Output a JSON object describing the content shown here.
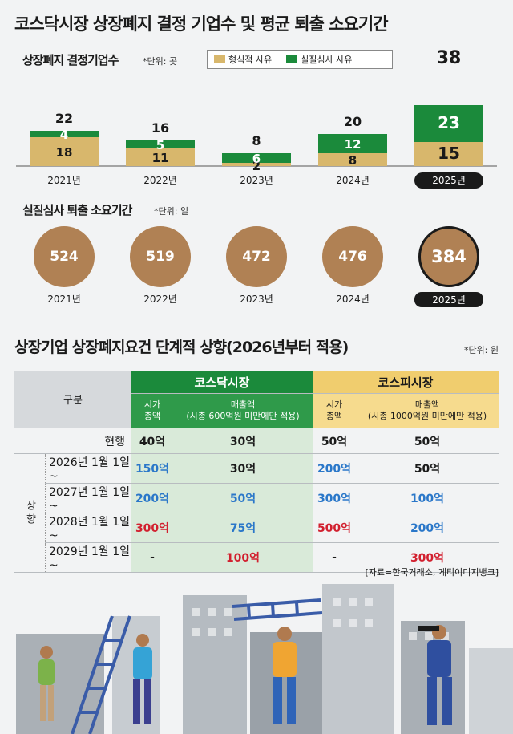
{
  "title": "코스닥시장 상장폐지 결정 기업수 및 평균 퇴출 소요기간",
  "section1": {
    "subtitle": "상장폐지 결정기업수",
    "unit": "*단위: 곳"
  },
  "section2": {
    "subtitle": "실질심사 퇴출 소요기간",
    "unit": "*단위: 일"
  },
  "section3": {
    "title": "상장기업 상장폐지요건 단계적 상향(2026년부터 적용)",
    "unit": "*단위: 원"
  },
  "colors": {
    "formal": "#d8b76c",
    "substantive": "#1b8a3b",
    "circle": "#b08154",
    "kosdaq": "#1b8a3b",
    "kospi": "#f0cd6e"
  },
  "chart_data": [
    {
      "type": "bar",
      "stacked": true,
      "categories": [
        "2021년",
        "2022년",
        "2023년",
        "2024년",
        "2025년"
      ],
      "series": [
        {
          "name": "형식적 사유",
          "values": [
            18,
            11,
            2,
            8,
            15
          ]
        },
        {
          "name": "실질심사 사유",
          "values": [
            4,
            5,
            6,
            12,
            23
          ]
        }
      ],
      "totals": [
        22,
        16,
        8,
        20,
        38
      ],
      "title": "상장폐지 결정기업수",
      "unit": "*단위: 곳",
      "highlight": "2025년",
      "legend": "top-right"
    },
    {
      "type": "scatter",
      "categories": [
        "2021년",
        "2022년",
        "2023년",
        "2024년",
        "2025년"
      ],
      "values": [
        524,
        519,
        472,
        476,
        384
      ],
      "title": "실질심사 퇴출 소요기간",
      "unit": "*단위: 일",
      "highlight": "2025년"
    }
  ],
  "table": {
    "col_header": "구분",
    "kosdaq": "코스닥시장",
    "kospi": "코스피시장",
    "mcap_label": "시가\n총액",
    "kosdaq_sales": "매출액\n(시총 600억원 미만에만 적용)",
    "kospi_sales": "매출액\n(시총 1000억원 미만에만 적용)",
    "group_label": "상향",
    "rows": [
      {
        "label": "현행",
        "k_mcap": "40억",
        "k_sales": "30억",
        "p_mcap": "50억",
        "p_sales": "50억",
        "c": [
          "dark",
          "dark",
          "dark",
          "dark"
        ]
      },
      {
        "label": "2026년 1월 1일 ~",
        "k_mcap": "150억",
        "k_sales": "30억",
        "p_mcap": "200억",
        "p_sales": "50억",
        "c": [
          "blue",
          "dark",
          "blue",
          "dark"
        ]
      },
      {
        "label": "2027년 1월 1일 ~",
        "k_mcap": "200억",
        "k_sales": "50억",
        "p_mcap": "300억",
        "p_sales": "100억",
        "c": [
          "blue",
          "blue",
          "blue",
          "blue"
        ]
      },
      {
        "label": "2028년 1월 1일 ~",
        "k_mcap": "300억",
        "k_sales": "75억",
        "p_mcap": "500억",
        "p_sales": "200억",
        "c": [
          "red",
          "blue",
          "red",
          "blue"
        ]
      },
      {
        "label": "2029년 1월 1일 ~",
        "k_mcap": "-",
        "k_sales": "100억",
        "p_mcap": "-",
        "p_sales": "300억",
        "c": [
          "dark",
          "red",
          "dark",
          "red"
        ]
      }
    ]
  },
  "source": "[자료=한국거래소, 게티이미지뱅크]"
}
